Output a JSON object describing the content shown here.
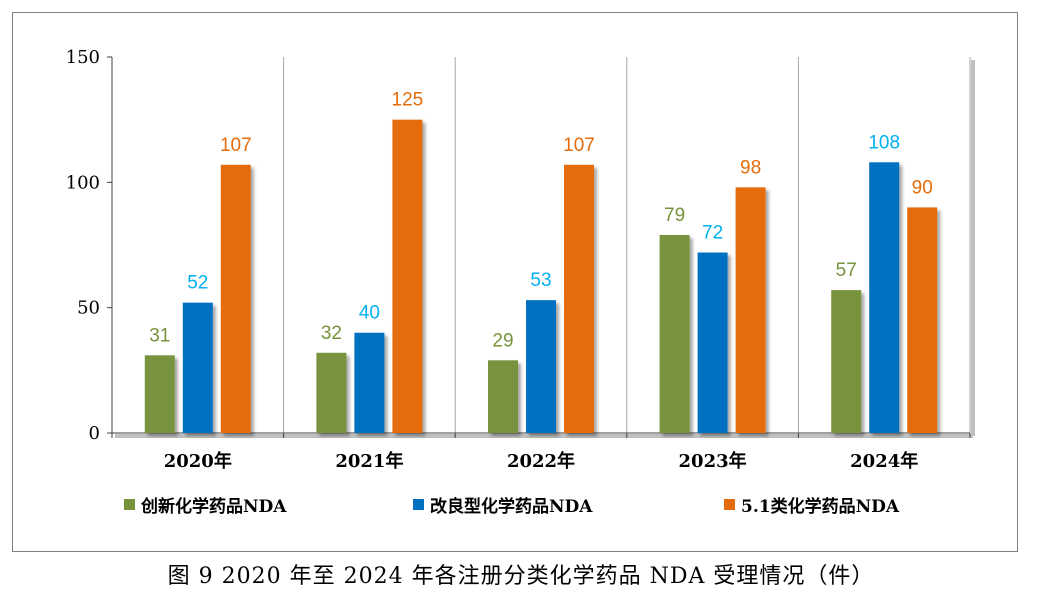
{
  "chart_data": {
    "type": "bar",
    "categories": [
      "2020年",
      "2021年",
      "2022年",
      "2023年",
      "2024年"
    ],
    "series": [
      {
        "name": "创新化学药品NDA",
        "color": "#77933c",
        "values": [
          31,
          32,
          29,
          79,
          57
        ]
      },
      {
        "name": "改良型化学药品NDA",
        "color": "#0070c0",
        "label_color": "#00b0f0",
        "values": [
          52,
          40,
          53,
          72,
          108
        ]
      },
      {
        "name": "5.1类化学药品NDA",
        "color": "#e46c0a",
        "values": [
          107,
          125,
          107,
          98,
          90
        ]
      }
    ],
    "ylim": [
      0,
      150
    ],
    "yticks": [
      "0",
      "50",
      "100",
      "150"
    ],
    "grid": "vertical separators between categories",
    "legend_position": "bottom"
  },
  "caption": "图 9   2020 年至 2024 年各注册分类化学药品 NDA 受理情况（件）"
}
